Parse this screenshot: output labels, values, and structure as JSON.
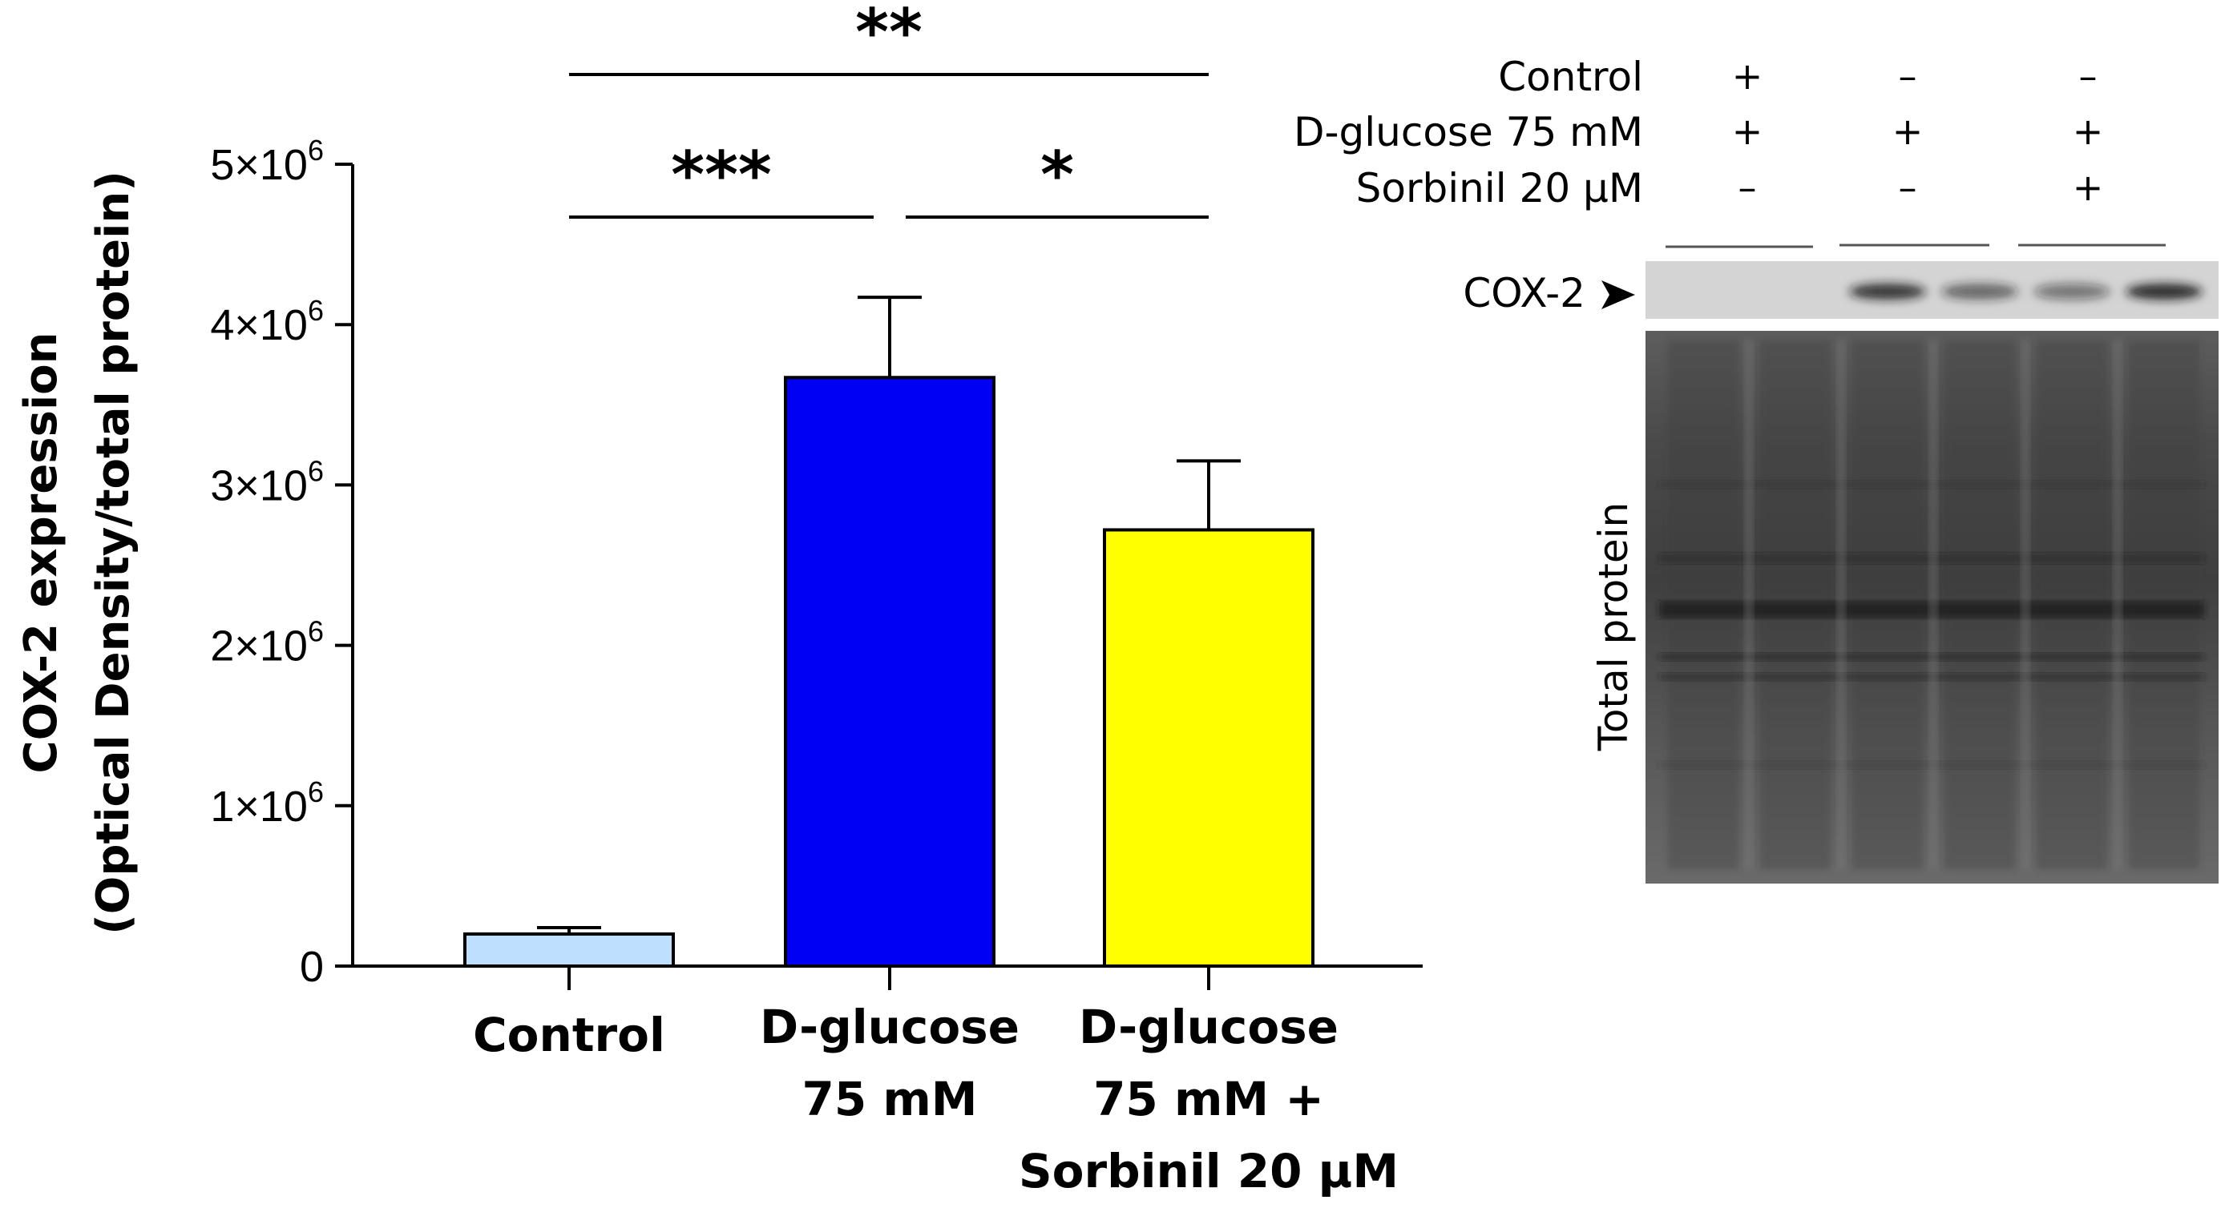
{
  "chart_data": {
    "type": "bar",
    "ylabel_line1": "COX-2 expression",
    "ylabel_line2": "(Optical Density/total protein)",
    "ylim": [
      0,
      5000000
    ],
    "yticks": [
      {
        "value": 0,
        "label": "0"
      },
      {
        "value": 1000000,
        "label": "1×10",
        "exp": "6"
      },
      {
        "value": 2000000,
        "label": "2×10",
        "exp": "6"
      },
      {
        "value": 3000000,
        "label": "3×10",
        "exp": "6"
      },
      {
        "value": 4000000,
        "label": "4×10",
        "exp": "6"
      },
      {
        "value": 5000000,
        "label": "5×10",
        "exp": "6"
      }
    ],
    "categories": [
      {
        "lines": [
          "Control"
        ],
        "value": 200000,
        "error": 40000,
        "color": "#BFDFFF"
      },
      {
        "lines": [
          "D-glucose",
          "75 mM"
        ],
        "value": 3670000,
        "error": 500000,
        "color": "#0000F2"
      },
      {
        "lines": [
          "D-glucose",
          "75 mM +",
          "Sorbinil 20 µM"
        ],
        "value": 2720000,
        "error": 430000,
        "color": "#FFFF00"
      }
    ],
    "significance": [
      {
        "from": 0,
        "to": 2,
        "label": "**",
        "level": 2
      },
      {
        "from": 0,
        "to": 1,
        "label": "***",
        "level": 1
      },
      {
        "from": 1,
        "to": 2,
        "label": "*",
        "level": 1
      }
    ]
  },
  "blot": {
    "rows": [
      {
        "label": "Control",
        "signs": [
          "+",
          "–",
          "–"
        ]
      },
      {
        "label": "D-glucose 75 mM",
        "signs": [
          "+",
          "+",
          "+"
        ]
      },
      {
        "label": "Sorbinil 20 μM",
        "signs": [
          "–",
          "–",
          "+"
        ]
      }
    ],
    "cox2_label": "COX-2",
    "total_protein_label": "Total protein",
    "cox2_band_intensity": [
      0.0,
      0.0,
      0.85,
      0.6,
      0.5,
      0.9
    ]
  }
}
